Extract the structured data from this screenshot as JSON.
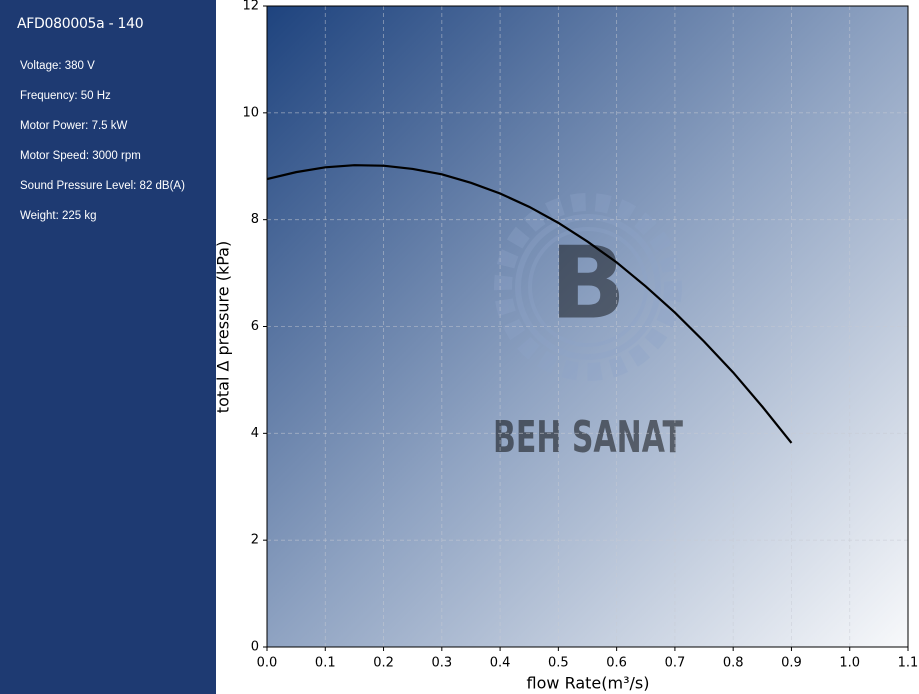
{
  "sidebar": {
    "title": "AFD080005a - 140",
    "specs": [
      "Voltage: 380 V",
      "Frequency: 50 Hz",
      "Motor Power: 7.5 kW",
      "Motor Speed: 3000 rpm",
      "Sound Pressure Level: 82 dB(A)",
      "Weight: 225 kg"
    ]
  },
  "chart_data": {
    "type": "line",
    "x_label": "flow Rate(m³/s)",
    "y_label": "total Δ pressure (kPa)",
    "watermark": "BEH SANAT",
    "watermark_logo": "B",
    "x": [
      0,
      0.05,
      0.1,
      0.15,
      0.2,
      0.25,
      0.3,
      0.35,
      0.4,
      0.45,
      0.5,
      0.55,
      0.6,
      0.65,
      0.7,
      0.75,
      0.8,
      0.85,
      0.9
    ],
    "series": [
      {
        "color": "#000000",
        "values": [
          8.76,
          8.89,
          8.98,
          9.02,
          9.01,
          8.95,
          8.85,
          8.69,
          8.49,
          8.24,
          7.94,
          7.59,
          7.2,
          6.75,
          6.26,
          5.72,
          5.14,
          4.5,
          3.82
        ]
      }
    ],
    "xlim": [
      0,
      1.1
    ],
    "ylim": [
      0,
      12
    ],
    "xticks": [
      {
        "value": 0,
        "label": "0.0"
      },
      0.1,
      0.2,
      0.3,
      0.4,
      0.5,
      0.6,
      0.7,
      0.8,
      0.9,
      {
        "value": 1,
        "label": "1.0"
      },
      1.1
    ],
    "yticks": [
      0,
      2,
      4,
      6,
      8,
      10,
      12
    ],
    "grid": true
  }
}
